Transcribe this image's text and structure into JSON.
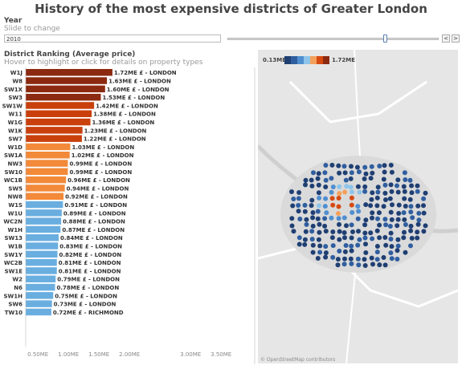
{
  "title": "History of the most expensive districts of Greater London",
  "year_filter": {
    "label": "Year",
    "hint": "Slide to change",
    "value": "2010",
    "prev": "<",
    "next": ">",
    "slider_fraction": 0.747
  },
  "ranking": {
    "label": "District Ranking (Average price)",
    "hint": "Hover to highlight or click for details on property types"
  },
  "chart_data": {
    "type": "bar",
    "orientation": "horizontal",
    "unit": "ME £",
    "categories": [
      "W1J",
      "W8",
      "SW1X",
      "SW3",
      "SW1W",
      "W11",
      "W1G",
      "W1K",
      "SW7",
      "W1D",
      "SW1A",
      "NW3",
      "SW10",
      "WC1B",
      "SW5",
      "NW8",
      "W1S",
      "W1U",
      "WC2N",
      "W1H",
      "SW13",
      "W1B",
      "SW1Y",
      "WC2B",
      "SW1E",
      "W2",
      "N6",
      "SW1H",
      "SW6",
      "TW10"
    ],
    "values": [
      1.72,
      1.63,
      1.6,
      1.53,
      1.42,
      1.38,
      1.36,
      1.23,
      1.22,
      1.03,
      1.02,
      0.99,
      0.99,
      0.96,
      0.94,
      0.92,
      0.91,
      0.89,
      0.88,
      0.87,
      0.84,
      0.83,
      0.82,
      0.81,
      0.81,
      0.79,
      0.78,
      0.75,
      0.73,
      0.72
    ],
    "data_labels": [
      "1.72ME £ - LONDON",
      "1.63ME £ - LONDON",
      "1.60ME £ - LONDON",
      "1.53ME £ - LONDON",
      "1.42ME £ - LONDON",
      "1.38ME £ - LONDON",
      "1.36ME £ - LONDON",
      "1.23ME £ - LONDON",
      "1.22ME £ - LONDON",
      "1.03ME £ - LONDON",
      "1.02ME £ - LONDON",
      "0.99ME £ - LONDON",
      "0.99ME £ - LONDON",
      "0.96ME £ - LONDON",
      "0.94ME £ - LONDON",
      "0.92ME £ - LONDON",
      "0.91ME £ - LONDON",
      "0.89ME £ - LONDON",
      "0.88ME £ - LONDON",
      "0.87ME £ - LONDON",
      "0.84ME £ - LONDON",
      "0.83ME £ - LONDON",
      "0.82ME £ - LONDON",
      "0.81ME £ - LONDON",
      "0.81ME £ - LONDON",
      "0.79ME £ - LONDON",
      "0.78ME £ - LONDON",
      "0.75ME £ - LONDON",
      "0.73ME £ - LONDON",
      "0.72ME £ - RICHMOND"
    ],
    "colors": [
      "#8b2a10",
      "#8b2a10",
      "#8b2a10",
      "#8b2a10",
      "#c9400c",
      "#c9400c",
      "#c9400c",
      "#c9400c",
      "#c9400c",
      "#f28a3a",
      "#f28a3a",
      "#f28a3a",
      "#f28a3a",
      "#f28a3a",
      "#f28a3a",
      "#f28a3a",
      "#6aaee0",
      "#6aaee0",
      "#6aaee0",
      "#6aaee0",
      "#6aaee0",
      "#6aaee0",
      "#6aaee0",
      "#6aaee0",
      "#6aaee0",
      "#6aaee0",
      "#6aaee0",
      "#6aaee0",
      "#6aaee0",
      "#6aaee0"
    ],
    "x_ticks": [
      0.5,
      1.0,
      1.5,
      2.0,
      3.0,
      3.5
    ],
    "x_tick_labels": [
      "0.50ME",
      "1.00ME",
      "1.50ME",
      "2.00ME",
      "3.00ME",
      "3.50ME"
    ],
    "xlim": [
      0.3,
      3.65
    ]
  },
  "map": {
    "legend_min": "0.13ME",
    "legend_max": "1.72ME",
    "legend_colors": [
      "#1f3f73",
      "#2f5ea0",
      "#4f8fd0",
      "#8ec4ea",
      "#f5a05a",
      "#d64a12",
      "#8b2a10"
    ],
    "attribution": "© OpenStreetMap contributors",
    "background": "#e6e6e6"
  }
}
